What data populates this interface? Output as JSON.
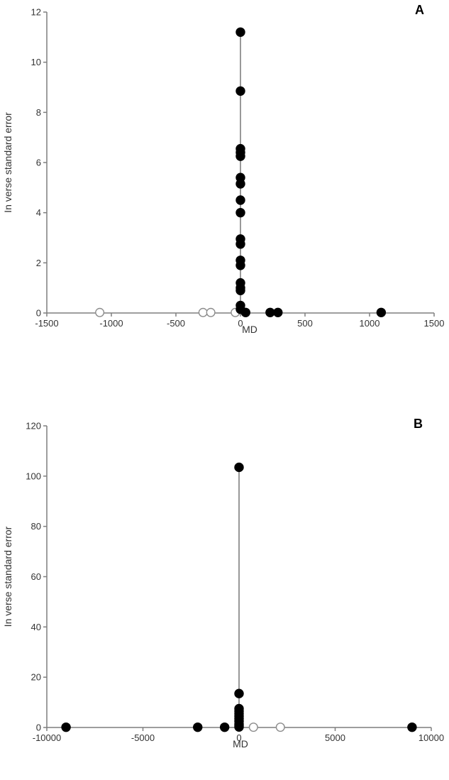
{
  "chart_data": [
    {
      "type": "scatter",
      "panel_label": "A",
      "xlabel": "MD",
      "ylabel": "In verse standard error",
      "xlim": [
        -1500,
        1500
      ],
      "ylim": [
        0,
        12
      ],
      "xticks": [
        -1500,
        -1000,
        -500,
        0,
        500,
        1000,
        1500
      ],
      "yticks": [
        0,
        2,
        4,
        6,
        8,
        10,
        12
      ],
      "xtick_labels": [
        "-1500",
        "-1000",
        "-500",
        "0",
        "500",
        "1000",
        "1500"
      ],
      "ytick_labels": [
        "0",
        "2",
        "4",
        "6",
        "8",
        "10",
        "12"
      ],
      "grid": false,
      "vertical_line_x": 0,
      "series": [
        {
          "marker": "filled",
          "color": "#000000",
          "points": [
            {
              "x": 0,
              "y": 11.2
            },
            {
              "x": 0,
              "y": 8.85
            },
            {
              "x": 0,
              "y": 6.55
            },
            {
              "x": 0,
              "y": 6.4
            },
            {
              "x": 0,
              "y": 6.25
            },
            {
              "x": 0,
              "y": 5.4
            },
            {
              "x": 0,
              "y": 5.15
            },
            {
              "x": 0,
              "y": 4.5
            },
            {
              "x": 0,
              "y": 4.0
            },
            {
              "x": 0,
              "y": 2.95
            },
            {
              "x": 0,
              "y": 2.75
            },
            {
              "x": 0,
              "y": 2.1
            },
            {
              "x": 0,
              "y": 1.9
            },
            {
              "x": 0,
              "y": 1.2
            },
            {
              "x": 0,
              "y": 1.0
            },
            {
              "x": 0,
              "y": 0.9
            },
            {
              "x": 0,
              "y": 0.3
            },
            {
              "x": 0,
              "y": 0.15
            },
            {
              "x": 40,
              "y": 0.02
            },
            {
              "x": 230,
              "y": 0.02
            },
            {
              "x": 290,
              "y": 0.02
            },
            {
              "x": 1090,
              "y": 0.02
            }
          ]
        },
        {
          "marker": "open",
          "color": "#8c8c8c",
          "points": [
            {
              "x": -1090,
              "y": 0.02
            },
            {
              "x": -290,
              "y": 0.02
            },
            {
              "x": -230,
              "y": 0.02
            },
            {
              "x": -40,
              "y": 0.02
            }
          ]
        }
      ]
    },
    {
      "type": "scatter",
      "panel_label": "B",
      "xlabel": "MD",
      "ylabel": "In verse standard error",
      "xlim": [
        -10000,
        10000
      ],
      "ylim": [
        0,
        120
      ],
      "xticks": [
        -10000,
        -5000,
        0,
        5000,
        10000
      ],
      "yticks": [
        0,
        20,
        40,
        60,
        80,
        100,
        120
      ],
      "xtick_labels": [
        "-10000",
        "-5000",
        "0",
        "5000",
        "10000"
      ],
      "ytick_labels": [
        "0",
        "20",
        "40",
        "60",
        "80",
        "100",
        "120"
      ],
      "grid": false,
      "vertical_line_x": 0,
      "series": [
        {
          "marker": "filled",
          "color": "#000000",
          "points": [
            {
              "x": 0,
              "y": 103.5
            },
            {
              "x": 0,
              "y": 13.5
            },
            {
              "x": 0,
              "y": 7.5
            },
            {
              "x": 0,
              "y": 6.5
            },
            {
              "x": 0,
              "y": 5.5
            },
            {
              "x": 0,
              "y": 4.5
            },
            {
              "x": 0,
              "y": 3.5
            },
            {
              "x": 0,
              "y": 2.5
            },
            {
              "x": 0,
              "y": 1.5
            },
            {
              "x": 0,
              "y": 0.8
            },
            {
              "x": 0,
              "y": 0.2
            },
            {
              "x": -9000,
              "y": 0.1
            },
            {
              "x": -2150,
              "y": 0.1
            },
            {
              "x": -750,
              "y": 0.1
            },
            {
              "x": 9000,
              "y": 0.1
            }
          ]
        },
        {
          "marker": "open",
          "color": "#8c8c8c",
          "points": [
            {
              "x": 750,
              "y": 0.1
            },
            {
              "x": 2150,
              "y": 0.1
            },
            {
              "x": 9000,
              "y": 0.1
            }
          ]
        }
      ]
    }
  ]
}
